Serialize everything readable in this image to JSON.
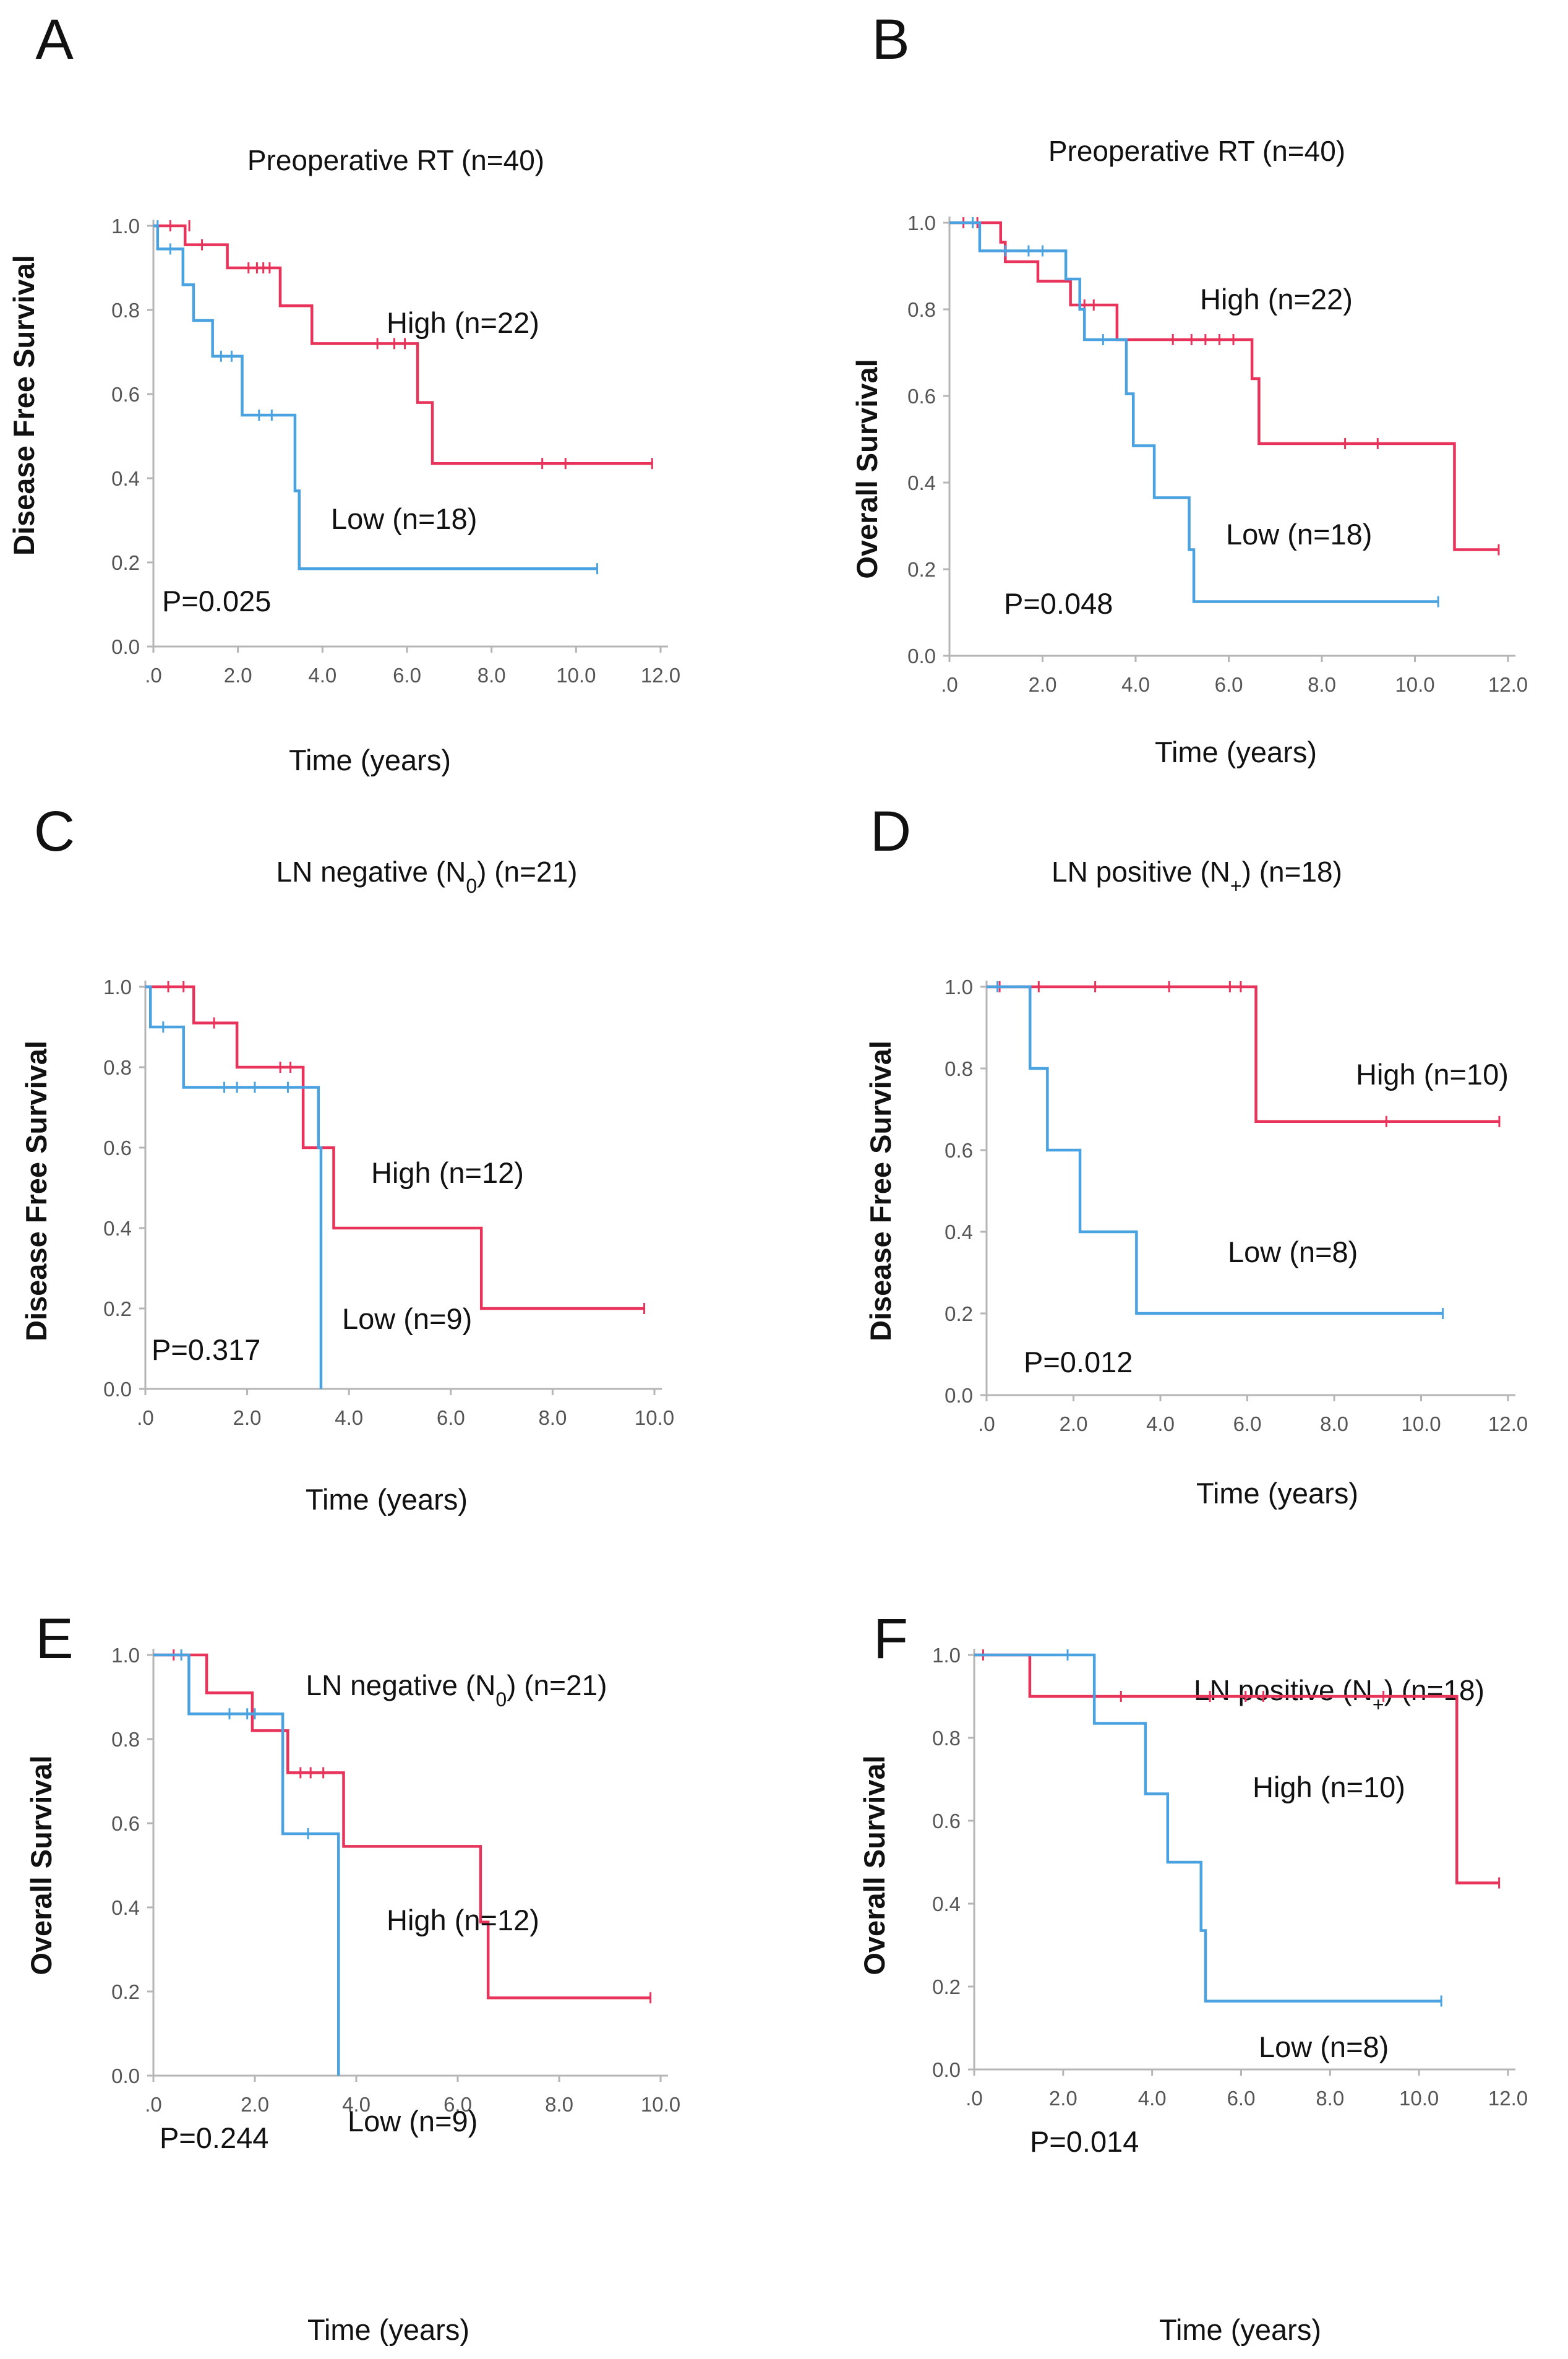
{
  "figure": {
    "panel_count": 6
  },
  "colors": {
    "high": "#e8335a",
    "low": "#4aa3e0",
    "axis": "#b5b5b5",
    "text": "#111111",
    "tick_text": "#555555"
  },
  "chart_data": [
    {
      "panel": "A",
      "type": "line",
      "title": "Preoperative RT  (n=40)",
      "ylabel": "Disease Free Survival",
      "xlabel": "Time (years)",
      "xticks": [
        ".0",
        "2.0",
        "4.0",
        "6.0",
        "8.0",
        "10.0",
        "12.0"
      ],
      "xlim": [
        0,
        12
      ],
      "yticks": [
        "0.0",
        "0.2",
        "0.4",
        "0.6",
        "0.8",
        "1.0"
      ],
      "ylim": [
        0,
        1
      ],
      "pvalue": "P=0.025",
      "series": [
        {
          "name": "High (n=22)",
          "color": "high",
          "steps": [
            [
              0,
              1.0
            ],
            [
              0.75,
              0.955
            ],
            [
              1.75,
              0.9
            ],
            [
              3.0,
              0.81
            ],
            [
              3.75,
              0.72
            ],
            [
              6.25,
              0.58
            ],
            [
              6.6,
              0.435
            ],
            [
              11.8,
              0.435
            ]
          ],
          "censors": [
            [
              0.4,
              1.0
            ],
            [
              0.85,
              1.0
            ],
            [
              1.15,
              0.955
            ],
            [
              2.25,
              0.9
            ],
            [
              2.45,
              0.9
            ],
            [
              2.6,
              0.9
            ],
            [
              2.75,
              0.9
            ],
            [
              5.3,
              0.72
            ],
            [
              5.7,
              0.72
            ],
            [
              5.95,
              0.72
            ],
            [
              9.2,
              0.435
            ],
            [
              9.75,
              0.435
            ],
            [
              11.8,
              0.435
            ]
          ]
        },
        {
          "name": "Low (n=18)",
          "color": "low",
          "steps": [
            [
              0,
              1.0
            ],
            [
              0.1,
              0.945
            ],
            [
              0.7,
              0.86
            ],
            [
              0.95,
              0.775
            ],
            [
              1.4,
              0.69
            ],
            [
              2.1,
              0.55
            ],
            [
              3.35,
              0.37
            ],
            [
              3.45,
              0.185
            ],
            [
              10.5,
              0.185
            ]
          ],
          "censors": [
            [
              0.1,
              1.0
            ],
            [
              0.4,
              0.945
            ],
            [
              1.6,
              0.69
            ],
            [
              1.85,
              0.69
            ],
            [
              2.5,
              0.55
            ],
            [
              2.8,
              0.55
            ],
            [
              10.5,
              0.185
            ]
          ]
        }
      ]
    },
    {
      "panel": "B",
      "type": "line",
      "title": "Preoperative RT (n=40)",
      "ylabel": "Overall Survival",
      "xlabel": "Time (years)",
      "xticks": [
        ".0",
        "2.0",
        "4.0",
        "6.0",
        "8.0",
        "10.0",
        "12.0"
      ],
      "xlim": [
        0,
        12
      ],
      "yticks": [
        "0.0",
        "0.2",
        "0.4",
        "0.6",
        "0.8",
        "1.0"
      ],
      "ylim": [
        0,
        1
      ],
      "pvalue": "P=0.048",
      "series": [
        {
          "name": "High (n=22)",
          "color": "high",
          "steps": [
            [
              0,
              1.0
            ],
            [
              1.1,
              0.955
            ],
            [
              1.2,
              0.91
            ],
            [
              1.9,
              0.865
            ],
            [
              2.6,
              0.81
            ],
            [
              3.6,
              0.73
            ],
            [
              6.5,
              0.64
            ],
            [
              6.65,
              0.49
            ],
            [
              10.8,
              0.49
            ],
            [
              10.85,
              0.245
            ],
            [
              11.8,
              0.245
            ]
          ],
          "censors": [
            [
              0.3,
              1.0
            ],
            [
              0.6,
              1.0
            ],
            [
              2.9,
              0.81
            ],
            [
              3.1,
              0.81
            ],
            [
              4.8,
              0.73
            ],
            [
              5.2,
              0.73
            ],
            [
              5.5,
              0.73
            ],
            [
              5.8,
              0.73
            ],
            [
              6.1,
              0.73
            ],
            [
              8.5,
              0.49
            ],
            [
              9.2,
              0.49
            ],
            [
              11.8,
              0.245
            ]
          ]
        },
        {
          "name": "Low (n=18)",
          "color": "low",
          "steps": [
            [
              0,
              1.0
            ],
            [
              0.65,
              0.935
            ],
            [
              2.5,
              0.87
            ],
            [
              2.8,
              0.8
            ],
            [
              2.9,
              0.73
            ],
            [
              3.8,
              0.605
            ],
            [
              3.95,
              0.485
            ],
            [
              4.4,
              0.365
            ],
            [
              5.15,
              0.245
            ],
            [
              5.25,
              0.125
            ],
            [
              10.5,
              0.125
            ]
          ],
          "censors": [
            [
              0.5,
              1.0
            ],
            [
              1.2,
              0.935
            ],
            [
              1.7,
              0.935
            ],
            [
              2.0,
              0.935
            ],
            [
              3.3,
              0.73
            ],
            [
              10.5,
              0.125
            ]
          ]
        }
      ]
    },
    {
      "panel": "C",
      "type": "line",
      "title": "LN negative (N0) (n=21)",
      "title_parts": [
        "LN negative (N",
        "0",
        ") (n=21)"
      ],
      "ylabel": "Disease Free Survival",
      "xlabel": "Time (years)",
      "xticks": [
        ".0",
        "2.0",
        "4.0",
        "6.0",
        "8.0",
        "10.0"
      ],
      "xlim": [
        0,
        10
      ],
      "yticks": [
        "0.0",
        "0.2",
        "0.4",
        "0.6",
        "0.8",
        "1.0"
      ],
      "ylim": [
        0,
        1
      ],
      "pvalue": "P=0.317",
      "series": [
        {
          "name": "High (n=12)",
          "color": "high",
          "steps": [
            [
              0,
              1.0
            ],
            [
              0.95,
              0.91
            ],
            [
              1.8,
              0.8
            ],
            [
              3.1,
              0.6
            ],
            [
              3.7,
              0.4
            ],
            [
              6.6,
              0.2
            ],
            [
              9.8,
              0.2
            ]
          ],
          "censors": [
            [
              0.45,
              1.0
            ],
            [
              0.75,
              1.0
            ],
            [
              1.35,
              0.91
            ],
            [
              2.65,
              0.8
            ],
            [
              2.85,
              0.8
            ],
            [
              9.8,
              0.2
            ]
          ]
        },
        {
          "name": "Low (n=9)",
          "color": "low",
          "steps": [
            [
              0,
              1.0
            ],
            [
              0.1,
              0.9
            ],
            [
              0.75,
              0.75
            ],
            [
              3.4,
              0.6
            ],
            [
              3.45,
              0.0
            ]
          ],
          "censors": [
            [
              0.35,
              0.9
            ],
            [
              1.55,
              0.75
            ],
            [
              1.8,
              0.75
            ],
            [
              2.15,
              0.75
            ],
            [
              2.8,
              0.75
            ]
          ]
        }
      ]
    },
    {
      "panel": "D",
      "type": "line",
      "title": "LN positive (N+) (n=18)",
      "title_parts": [
        "LN positive (N",
        "+",
        ") (n=18)"
      ],
      "ylabel": "Disease Free Survival",
      "xlabel": "Time (years)",
      "xticks": [
        ".0",
        "2.0",
        "4.0",
        "6.0",
        "8.0",
        "10.0",
        "12.0"
      ],
      "xlim": [
        0,
        12
      ],
      "yticks": [
        "0.0",
        "0.2",
        "0.4",
        "0.6",
        "0.8",
        "1.0"
      ],
      "ylim": [
        0,
        1
      ],
      "pvalue": "P=0.012",
      "series": [
        {
          "name": "High (n=10)",
          "color": "high",
          "steps": [
            [
              0,
              1.0
            ],
            [
              6.2,
              0.67
            ],
            [
              11.8,
              0.67
            ]
          ],
          "censors": [
            [
              0.3,
              1.0
            ],
            [
              1.2,
              1.0
            ],
            [
              2.5,
              1.0
            ],
            [
              4.2,
              1.0
            ],
            [
              5.6,
              1.0
            ],
            [
              5.85,
              1.0
            ],
            [
              9.2,
              0.67
            ],
            [
              11.8,
              0.67
            ]
          ]
        },
        {
          "name": "Low (n=8)",
          "color": "low",
          "steps": [
            [
              0,
              1.0
            ],
            [
              1.0,
              0.8
            ],
            [
              1.4,
              0.6
            ],
            [
              2.15,
              0.4
            ],
            [
              3.45,
              0.2
            ],
            [
              10.5,
              0.2
            ]
          ],
          "censors": [
            [
              0.25,
              1.0
            ],
            [
              10.5,
              0.2
            ]
          ]
        }
      ]
    },
    {
      "panel": "E",
      "type": "line",
      "title": "LN negative (N0) (n=21)",
      "title_parts": [
        "LN negative (N",
        "0",
        ") (n=21)"
      ],
      "ylabel": "Overall Survival",
      "xlabel": "Time (years)",
      "xticks": [
        ".0",
        "2.0",
        "4.0",
        "6.0",
        "8.0",
        "10.0"
      ],
      "xlim": [
        0,
        10
      ],
      "yticks": [
        "0.0",
        "0.2",
        "0.4",
        "0.6",
        "0.8",
        "1.0"
      ],
      "ylim": [
        0,
        1
      ],
      "pvalue": "P=0.244",
      "series": [
        {
          "name": "High (n=12)",
          "color": "high",
          "steps": [
            [
              0,
              1.0
            ],
            [
              1.05,
              0.91
            ],
            [
              1.95,
              0.82
            ],
            [
              2.65,
              0.72
            ],
            [
              3.75,
              0.545
            ],
            [
              6.45,
              0.365
            ],
            [
              6.6,
              0.185
            ],
            [
              9.8,
              0.185
            ]
          ],
          "censors": [
            [
              0.4,
              1.0
            ],
            [
              2.9,
              0.72
            ],
            [
              3.1,
              0.72
            ],
            [
              3.35,
              0.72
            ],
            [
              9.8,
              0.185
            ]
          ]
        },
        {
          "name": "Low (n=9)",
          "color": "low",
          "steps": [
            [
              0,
              1.0
            ],
            [
              0.7,
              0.86
            ],
            [
              2.55,
              0.575
            ],
            [
              3.65,
              0.0
            ]
          ],
          "censors": [
            [
              0.55,
              1.0
            ],
            [
              1.5,
              0.86
            ],
            [
              1.85,
              0.86
            ],
            [
              2.0,
              0.86
            ],
            [
              3.05,
              0.575
            ]
          ]
        }
      ]
    },
    {
      "panel": "F",
      "type": "line",
      "title": "LN positive (N+) (n=18)",
      "title_parts": [
        "LN positive (N",
        "+",
        ") (n=18)"
      ],
      "ylabel": "Overall Survival",
      "xlabel": "Time (years)",
      "xticks": [
        ".0",
        "2.0",
        "4.0",
        "6.0",
        "8.0",
        "10.0",
        "12.0"
      ],
      "xlim": [
        0,
        12
      ],
      "yticks": [
        "0.0",
        "0.2",
        "0.4",
        "0.6",
        "0.8",
        "1.0"
      ],
      "ylim": [
        0,
        1
      ],
      "pvalue": "P=0.014",
      "series": [
        {
          "name": "High (n=10)",
          "color": "high",
          "steps": [
            [
              0,
              1.0
            ],
            [
              1.25,
              0.9
            ],
            [
              10.85,
              0.45
            ],
            [
              11.8,
              0.45
            ]
          ],
          "censors": [
            [
              0.2,
              1.0
            ],
            [
              3.3,
              0.9
            ],
            [
              5.3,
              0.9
            ],
            [
              6.1,
              0.9
            ],
            [
              6.5,
              0.9
            ],
            [
              9.2,
              0.9
            ],
            [
              11.8,
              0.45
            ]
          ]
        },
        {
          "name": "Low (n=8)",
          "color": "low",
          "steps": [
            [
              0,
              1.0
            ],
            [
              2.7,
              0.835
            ],
            [
              3.85,
              0.665
            ],
            [
              4.35,
              0.5
            ],
            [
              5.1,
              0.335
            ],
            [
              5.2,
              0.165
            ],
            [
              10.5,
              0.165
            ]
          ],
          "censors": [
            [
              2.1,
              1.0
            ],
            [
              10.5,
              0.165
            ]
          ]
        }
      ]
    }
  ]
}
